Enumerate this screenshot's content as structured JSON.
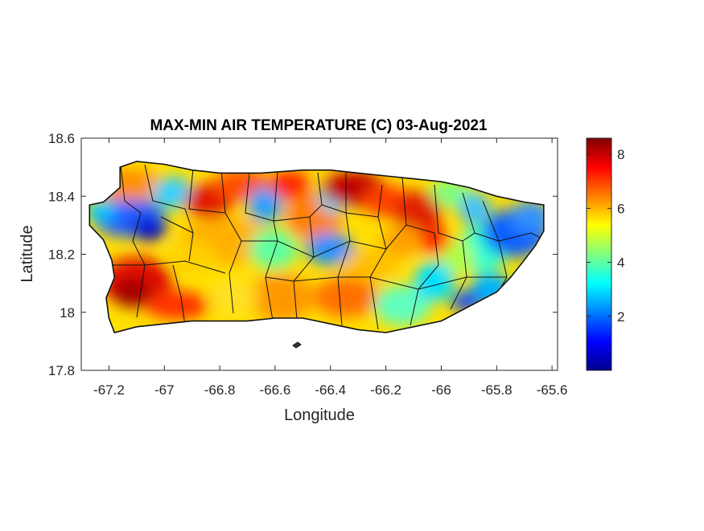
{
  "chart_data": {
    "type": "heatmap",
    "title": "MAX-MIN AIR TEMPERATURE (C) 03-Aug-2021",
    "xlabel": "Longitude",
    "ylabel": "Latitude",
    "xlim": [
      -67.3,
      -65.58
    ],
    "ylim": [
      17.8,
      18.6
    ],
    "xticks": [
      -67.2,
      -67,
      -66.8,
      -66.6,
      -66.4,
      -66.2,
      -66,
      -65.8,
      -65.6
    ],
    "xtick_labels": [
      "-67.2",
      "-67",
      "-66.8",
      "-66.6",
      "-66.4",
      "-66.2",
      "-66",
      "-65.8",
      "-65.6"
    ],
    "yticks": [
      17.8,
      18,
      18.2,
      18.4,
      18.6
    ],
    "ytick_labels": [
      "17.8",
      "18",
      "18.2",
      "18.4",
      "18.6"
    ],
    "colorbar": {
      "colormap": "jet",
      "range": [
        0,
        8.6
      ],
      "ticks": [
        2,
        4,
        6,
        8
      ],
      "tick_labels": [
        "2",
        "4",
        "6",
        "8"
      ]
    },
    "grid": false
  }
}
